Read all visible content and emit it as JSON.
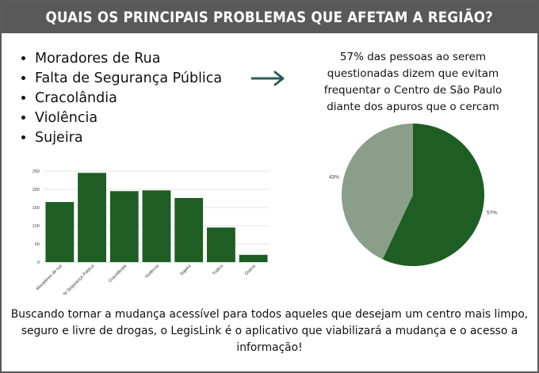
{
  "header": {
    "title": "QUAIS OS PRINCIPAIS PROBLEMAS QUE AFETAM A REGIÃO?"
  },
  "problems": [
    {
      "label": "Moradores de Rua"
    },
    {
      "label": "Falta de Segurança Pública"
    },
    {
      "label": "Cracolândia"
    },
    {
      "label": "Violência"
    },
    {
      "label": "Sujeira"
    }
  ],
  "arrow_icon": "arrow-right-icon",
  "stat": {
    "text": "57% das pessoas ao serem questionadas dizem que evitam frequentar o Centro de São Paulo diante dos apuros que o cercam"
  },
  "footer": {
    "text": "Buscando tornar a mudança acessível para todos aqueles que desejam um centro mais limpo, seguro e livre de drogas, o LegisLink é o aplicativo que viabilizará a mudança  e o acesso a informação!"
  },
  "colors": {
    "banner": "#595959",
    "bar": "#1e5e24",
    "pie_major": "#1e5e24",
    "pie_minor": "#8a9e89",
    "arrow": "#2e5c5a"
  },
  "chart_data": [
    {
      "type": "bar",
      "categories": [
        "Moradores de rua",
        "Falta de Segurança Pública",
        "Cracolândia",
        "Violência",
        "Sujeira",
        "Tráfico",
        "Outros"
      ],
      "values": [
        165,
        245,
        195,
        197,
        176,
        95,
        20
      ],
      "ylim": [
        0,
        250
      ],
      "yticks": [
        0,
        50,
        100,
        150,
        200,
        250
      ],
      "grid": true
    },
    {
      "type": "pie",
      "labels": [
        "57%",
        "43%"
      ],
      "values": [
        57,
        43
      ]
    }
  ]
}
